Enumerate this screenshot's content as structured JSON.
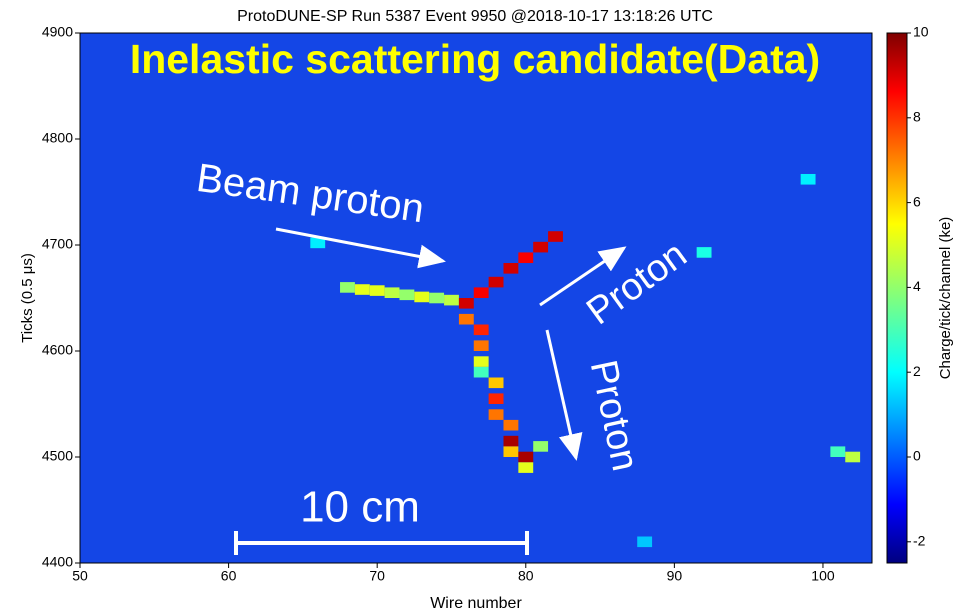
{
  "chart_data": {
    "type": "heatmap",
    "title": "ProtoDUNE-SP Run 5387 Event 9950 @2018-10-17 13:18:26 UTC",
    "x_label": "Wire number",
    "y_label": "Ticks (0.5 μs)",
    "colorbar_label": "Charge/tick/channel (ke)",
    "annotations": [
      "Inelastic scattering candidate(Data)",
      "Beam proton",
      "Proton",
      "Proton",
      "10 cm"
    ],
    "x": [
      68,
      69,
      70,
      71,
      72,
      73,
      74,
      75,
      76,
      76,
      77,
      77,
      77,
      77,
      77,
      78,
      78,
      78,
      78,
      79,
      79,
      79,
      79,
      80,
      80,
      80,
      81,
      81,
      82,
      92,
      66,
      99,
      101,
      102,
      88
    ],
    "y": [
      4660,
      4658,
      4657,
      4655,
      4653,
      4651,
      4650,
      4648,
      4645,
      4630,
      4655,
      4620,
      4605,
      4590,
      4580,
      4665,
      4570,
      4555,
      4540,
      4678,
      4530,
      4515,
      4505,
      4688,
      4500,
      4490,
      4698,
      4510,
      4708,
      4693,
      4702,
      4762,
      4505,
      4500,
      4420
    ],
    "values": [
      4,
      5,
      5,
      4.5,
      4,
      5,
      4,
      4.5,
      9,
      7,
      8.5,
      8,
      7,
      5,
      3,
      9,
      6,
      8,
      7,
      9,
      7,
      9.5,
      6,
      8.5,
      9.5,
      5,
      9,
      4,
      9,
      2.5,
      2,
      2,
      3,
      4.5,
      1.5
    ],
    "xlim": [
      50,
      103.3
    ],
    "ylim": [
      4400,
      4900
    ],
    "xticks": [
      50,
      60,
      70,
      80,
      90,
      100
    ],
    "yticks": [
      4400,
      4500,
      4600,
      4700,
      4800,
      4900
    ],
    "clim": [
      -2.5,
      10
    ],
    "cticks": [
      -2,
      0,
      2,
      4,
      6,
      8,
      10
    ],
    "colormap": "jet"
  }
}
